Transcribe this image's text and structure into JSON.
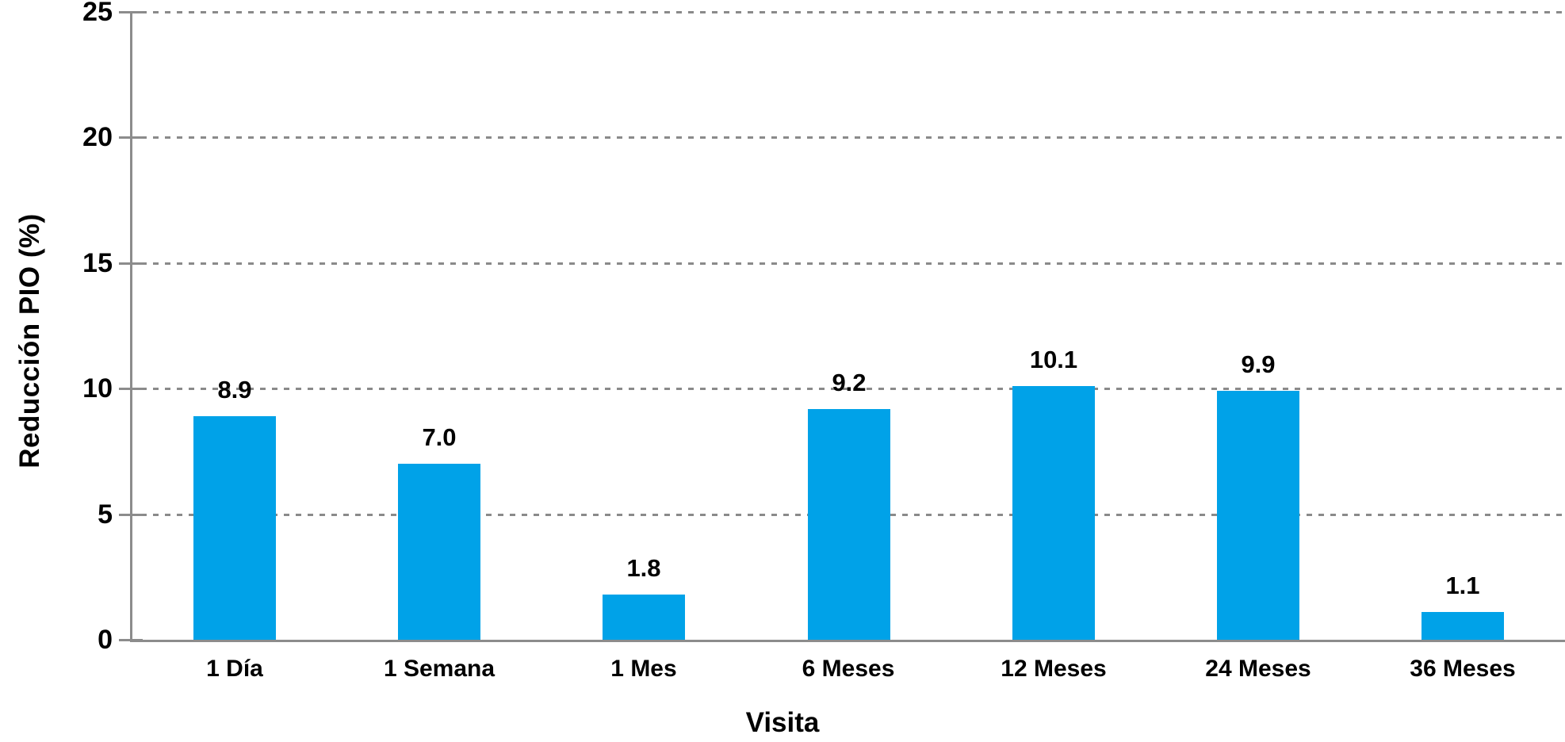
{
  "chart_data": {
    "type": "bar",
    "title": "",
    "categories": [
      "1 Día",
      "1 Semana",
      "1 Mes",
      "6 Meses",
      "12 Meses",
      "24 Meses",
      "36 Meses"
    ],
    "values": [
      8.9,
      7.0,
      1.8,
      9.2,
      10.1,
      9.9,
      1.1
    ],
    "value_labels": [
      "8.9",
      "7.0",
      "1.8",
      "9.2",
      "10.1",
      "9.9",
      "1.1"
    ],
    "xlabel": "Visita",
    "ylabel": "Reducción PIO (%)",
    "ylim": [
      0,
      25
    ],
    "yticks": [
      0,
      5,
      10,
      15,
      20,
      25
    ],
    "grid": "horizontal-dashed",
    "legend": "none",
    "colors": {
      "bar": "#00A2E8",
      "axis": "#8C8C8C",
      "grid": "#8A8A8A",
      "text": "#000000"
    }
  }
}
